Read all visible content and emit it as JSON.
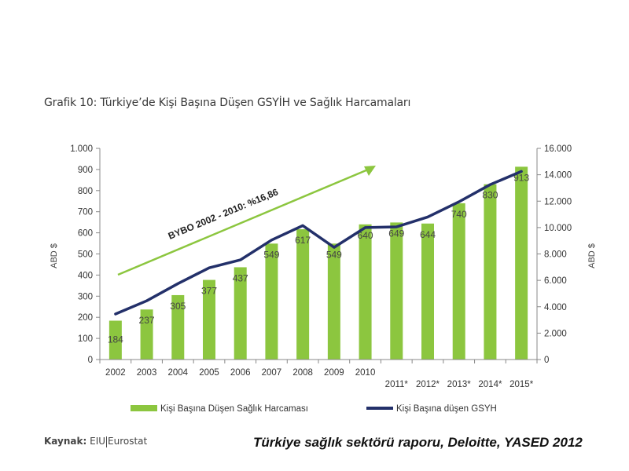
{
  "title": "Grafik 10: Türkiye’de Kişi Başına Düşen GSYİH ve Sağlık Harcamaları",
  "source_label": "Kaynak:",
  "source_a": "EIU",
  "source_b": "Eurostat",
  "citation": "Türkiye sağlık sektörü raporu, Deloitte, YASED 2012",
  "chart_data": {
    "type": "bar",
    "categories": [
      "2002",
      "2003",
      "2004",
      "2005",
      "2006",
      "2007",
      "2008",
      "2009",
      "2010",
      "2011*",
      "2012*",
      "2013*",
      "2014*",
      "2015*"
    ],
    "bar_series": {
      "name": "Kişi Başına Düşen Sağlık Harcaması",
      "values": [
        184,
        237,
        305,
        377,
        437,
        549,
        617,
        549,
        640,
        649,
        644,
        740,
        830,
        913
      ],
      "color": "#8cc63f"
    },
    "line_series": {
      "name": "Kişi Başına düşen GSYH",
      "values": [
        3450,
        4450,
        5750,
        6950,
        7550,
        9050,
        10150,
        8500,
        10000,
        10050,
        10800,
        11950,
        13250,
        14250
      ],
      "color": "#23306a"
    },
    "y_left": {
      "label": "ABD $",
      "min": 0,
      "max": 1000,
      "ticks": [
        0,
        100,
        200,
        300,
        400,
        500,
        600,
        700,
        800,
        900,
        1000
      ],
      "tick_labels": [
        "0",
        "100",
        "200",
        "300",
        "400",
        "500",
        "600",
        "700",
        "800",
        "900",
        "1.000"
      ]
    },
    "y_right": {
      "label": "ABD $",
      "min": 0,
      "max": 16000,
      "ticks": [
        0,
        2000,
        4000,
        6000,
        8000,
        10000,
        12000,
        14000,
        16000
      ],
      "tick_labels": [
        "0",
        "2.000",
        "4.000",
        "6.000",
        "8.000",
        "10.000",
        "12.000",
        "14.000",
        "16.000"
      ]
    },
    "annotation": {
      "text": "BYBO 2002 - 2010: %16,86",
      "color": "#8cc63f"
    },
    "legend_position": "bottom"
  }
}
